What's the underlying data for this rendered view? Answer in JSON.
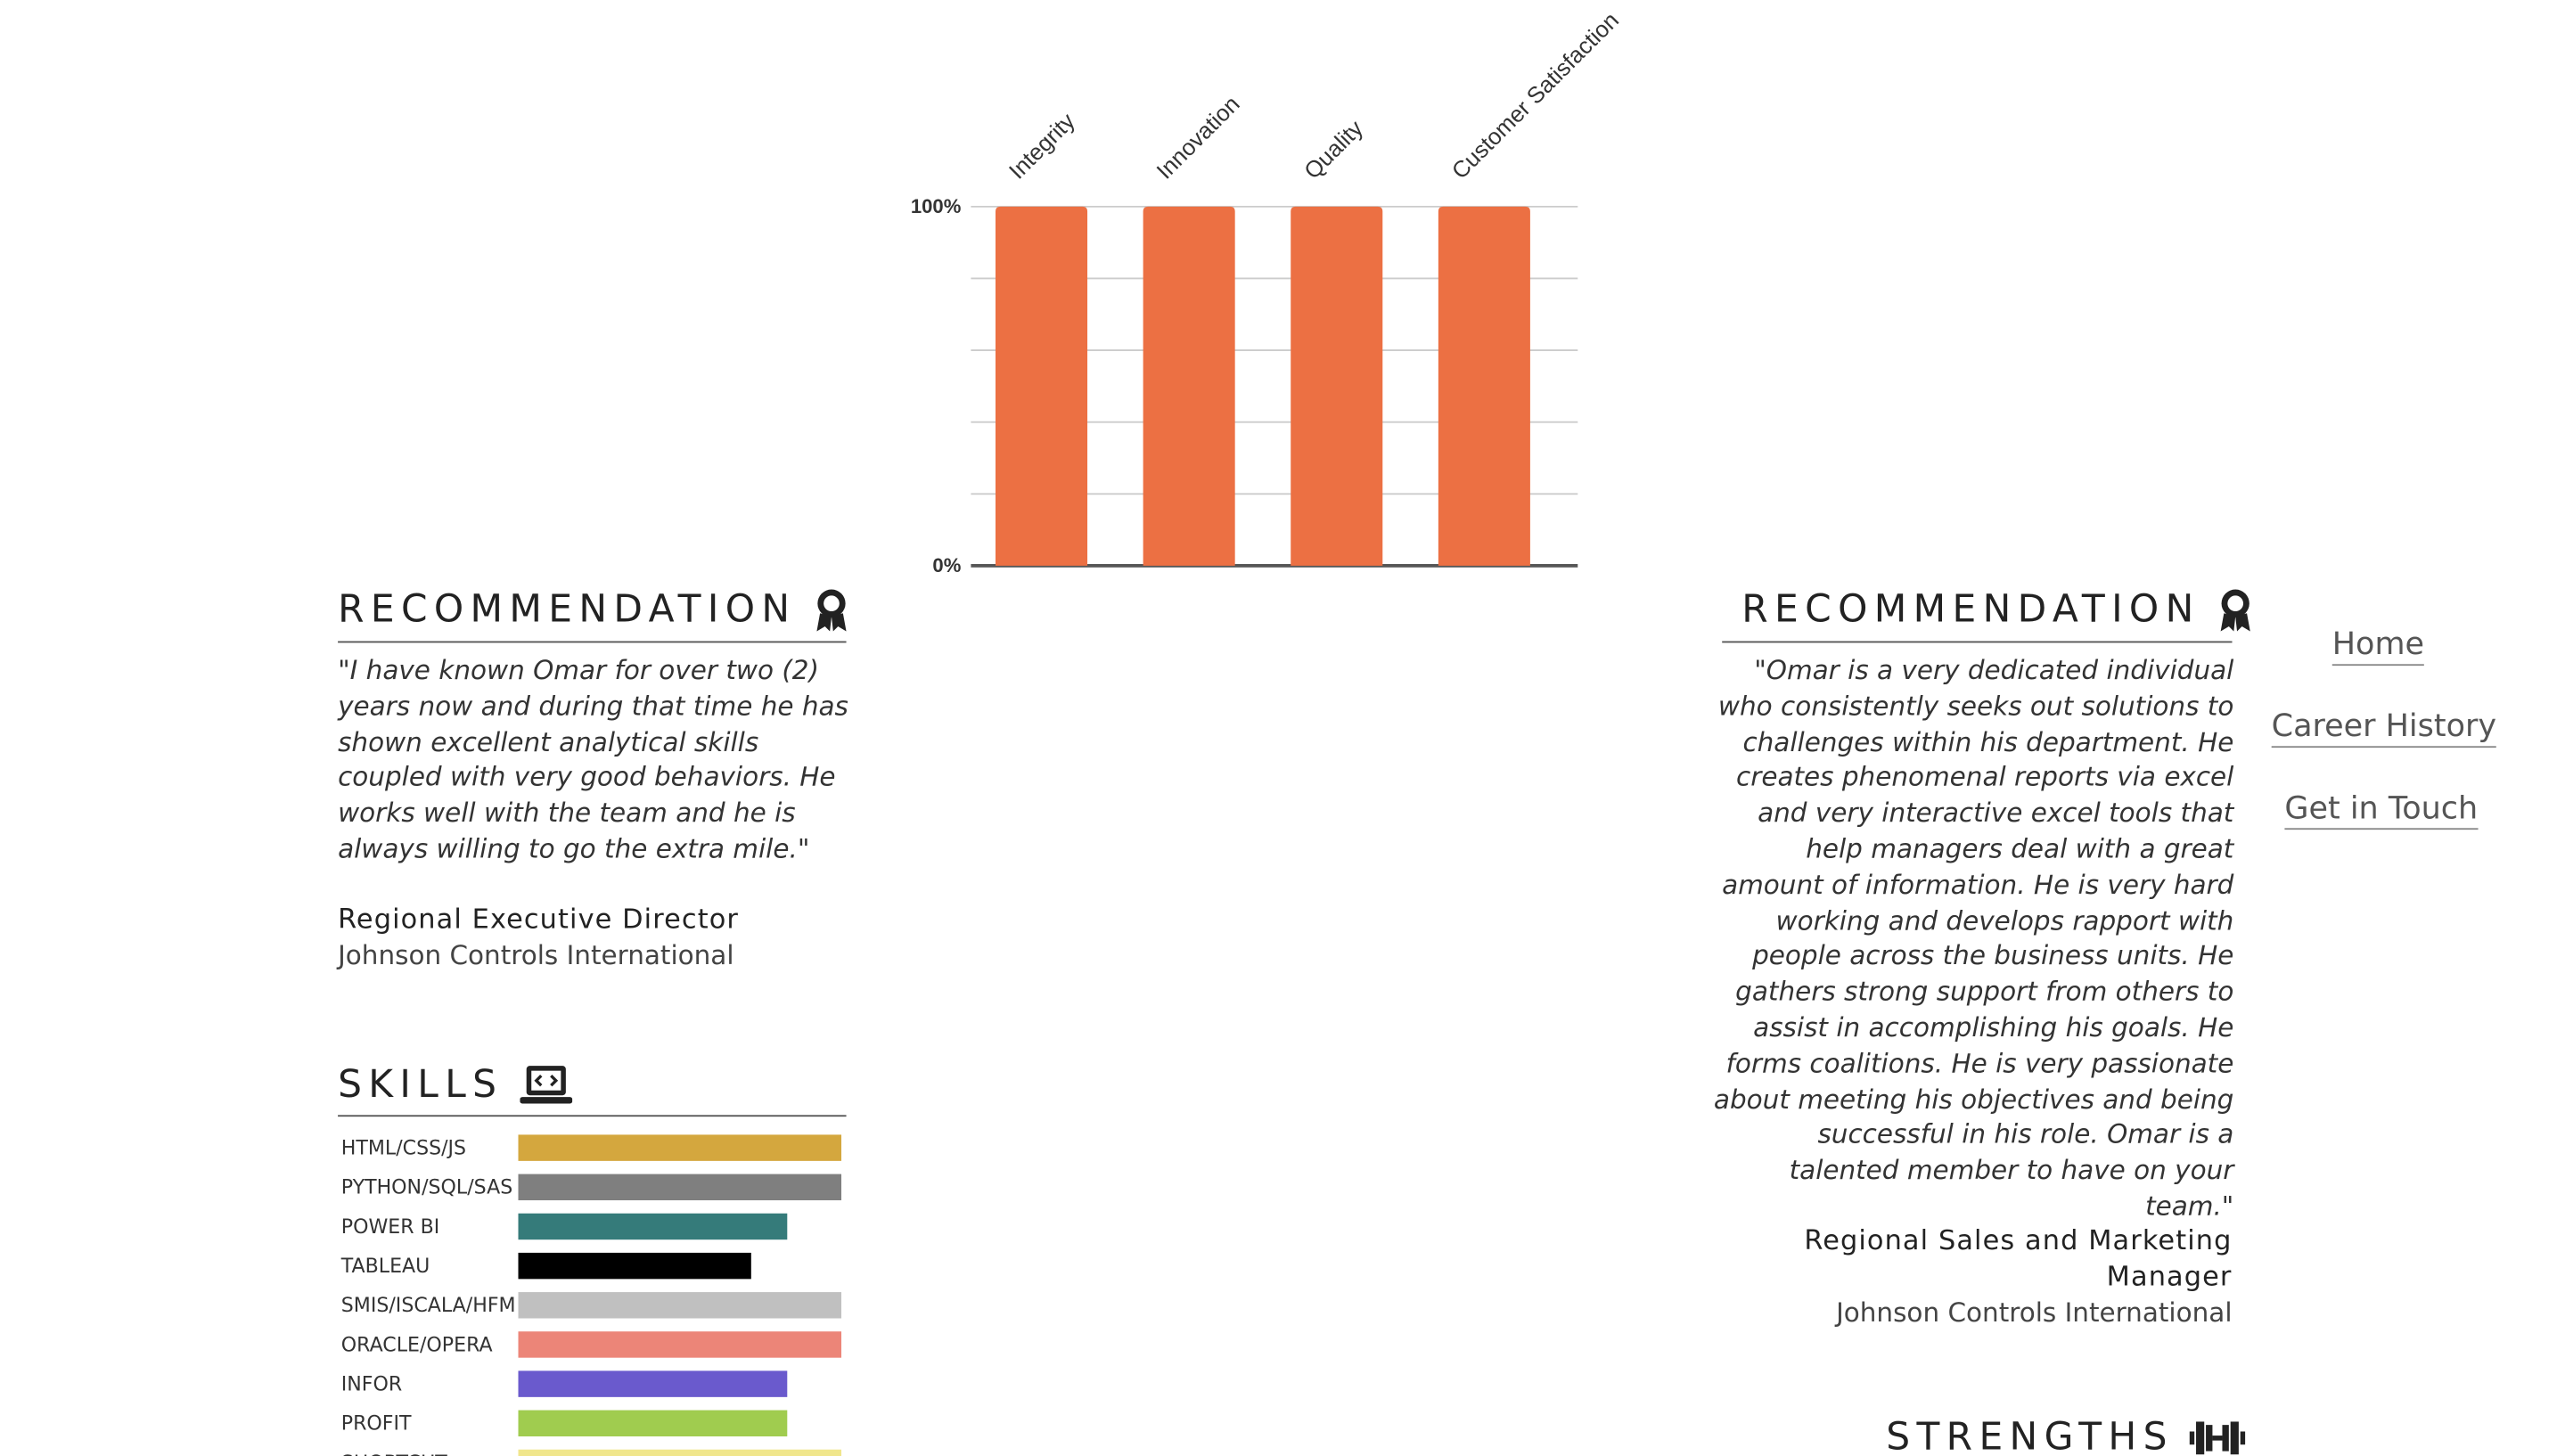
{
  "chart_data": {
    "type": "bar",
    "categories": [
      "Integrity",
      "Innovation",
      "Quality",
      "Customer Satisfaction"
    ],
    "values": [
      100,
      100,
      100,
      100
    ],
    "ylim": [
      0,
      100
    ],
    "y_tick_labels": [
      "0%",
      "100%"
    ],
    "grid": true,
    "colors": {
      "bar": "#ec7043",
      "grid": "#cccccc",
      "axis": "#555555"
    }
  },
  "recommendation_left": {
    "heading": "RECOMMENDATION",
    "quote": "\"I have known Omar for over two (2) years now and during that time he has shown excellent analytical skills coupled with very good behaviors. He works well with the team and he is always willing to go the extra mile.\"",
    "author_title": "Regional Executive Director",
    "author_org": "Johnson Controls International"
  },
  "recommendation_right": {
    "heading": "RECOMMENDATION",
    "quote": "\"Omar is a very dedicated individual who consistently seeks out solutions to challenges within his department. He creates phenomenal reports via excel and very interactive excel tools that help managers deal with a great amount of information. He is very hard working and develops rapport with people across the business units. He gathers strong support from others to assist in accomplishing his goals. He forms coalitions. He is very passionate about meeting his objectives and being successful in his role. Omar is a talented member to have on your team.\"",
    "author_title": "Regional Sales and Marketing Manager",
    "author_org": "Johnson Controls International"
  },
  "skills": {
    "heading": "SKILLS",
    "items": [
      {
        "label": "HTML/CSS/JS",
        "level": 1.0,
        "color": "#d4a73e"
      },
      {
        "label": "PYTHON/SQL/SAS",
        "level": 1.0,
        "color": "#7f7f7f"
      },
      {
        "label": "POWER BI",
        "level": 0.83,
        "color": "#357b7a"
      },
      {
        "label": "TABLEAU",
        "level": 0.72,
        "color": "#000000"
      },
      {
        "label": "SMIS/ISCALA/HFM",
        "level": 1.0,
        "color": "#c0c0c0"
      },
      {
        "label": "ORACLE/OPERA",
        "level": 1.0,
        "color": "#ec8578"
      },
      {
        "label": "INFOR",
        "level": 0.83,
        "color": "#6a5acd"
      },
      {
        "label": "PROFIT",
        "level": 0.83,
        "color": "#a0cc4f"
      },
      {
        "label": "SHORTCUT",
        "level": 1.0,
        "color": "#f0e68c"
      }
    ]
  },
  "strengths": {
    "heading": "STRENGTHS"
  },
  "nav": {
    "items": [
      {
        "label": "Home"
      },
      {
        "label": "Career History"
      },
      {
        "label": "Get in Touch"
      }
    ]
  },
  "icons": {
    "recommendation": "award-ribbon-icon",
    "skills": "laptop-code-icon",
    "strengths": "dumbbell-icon"
  }
}
